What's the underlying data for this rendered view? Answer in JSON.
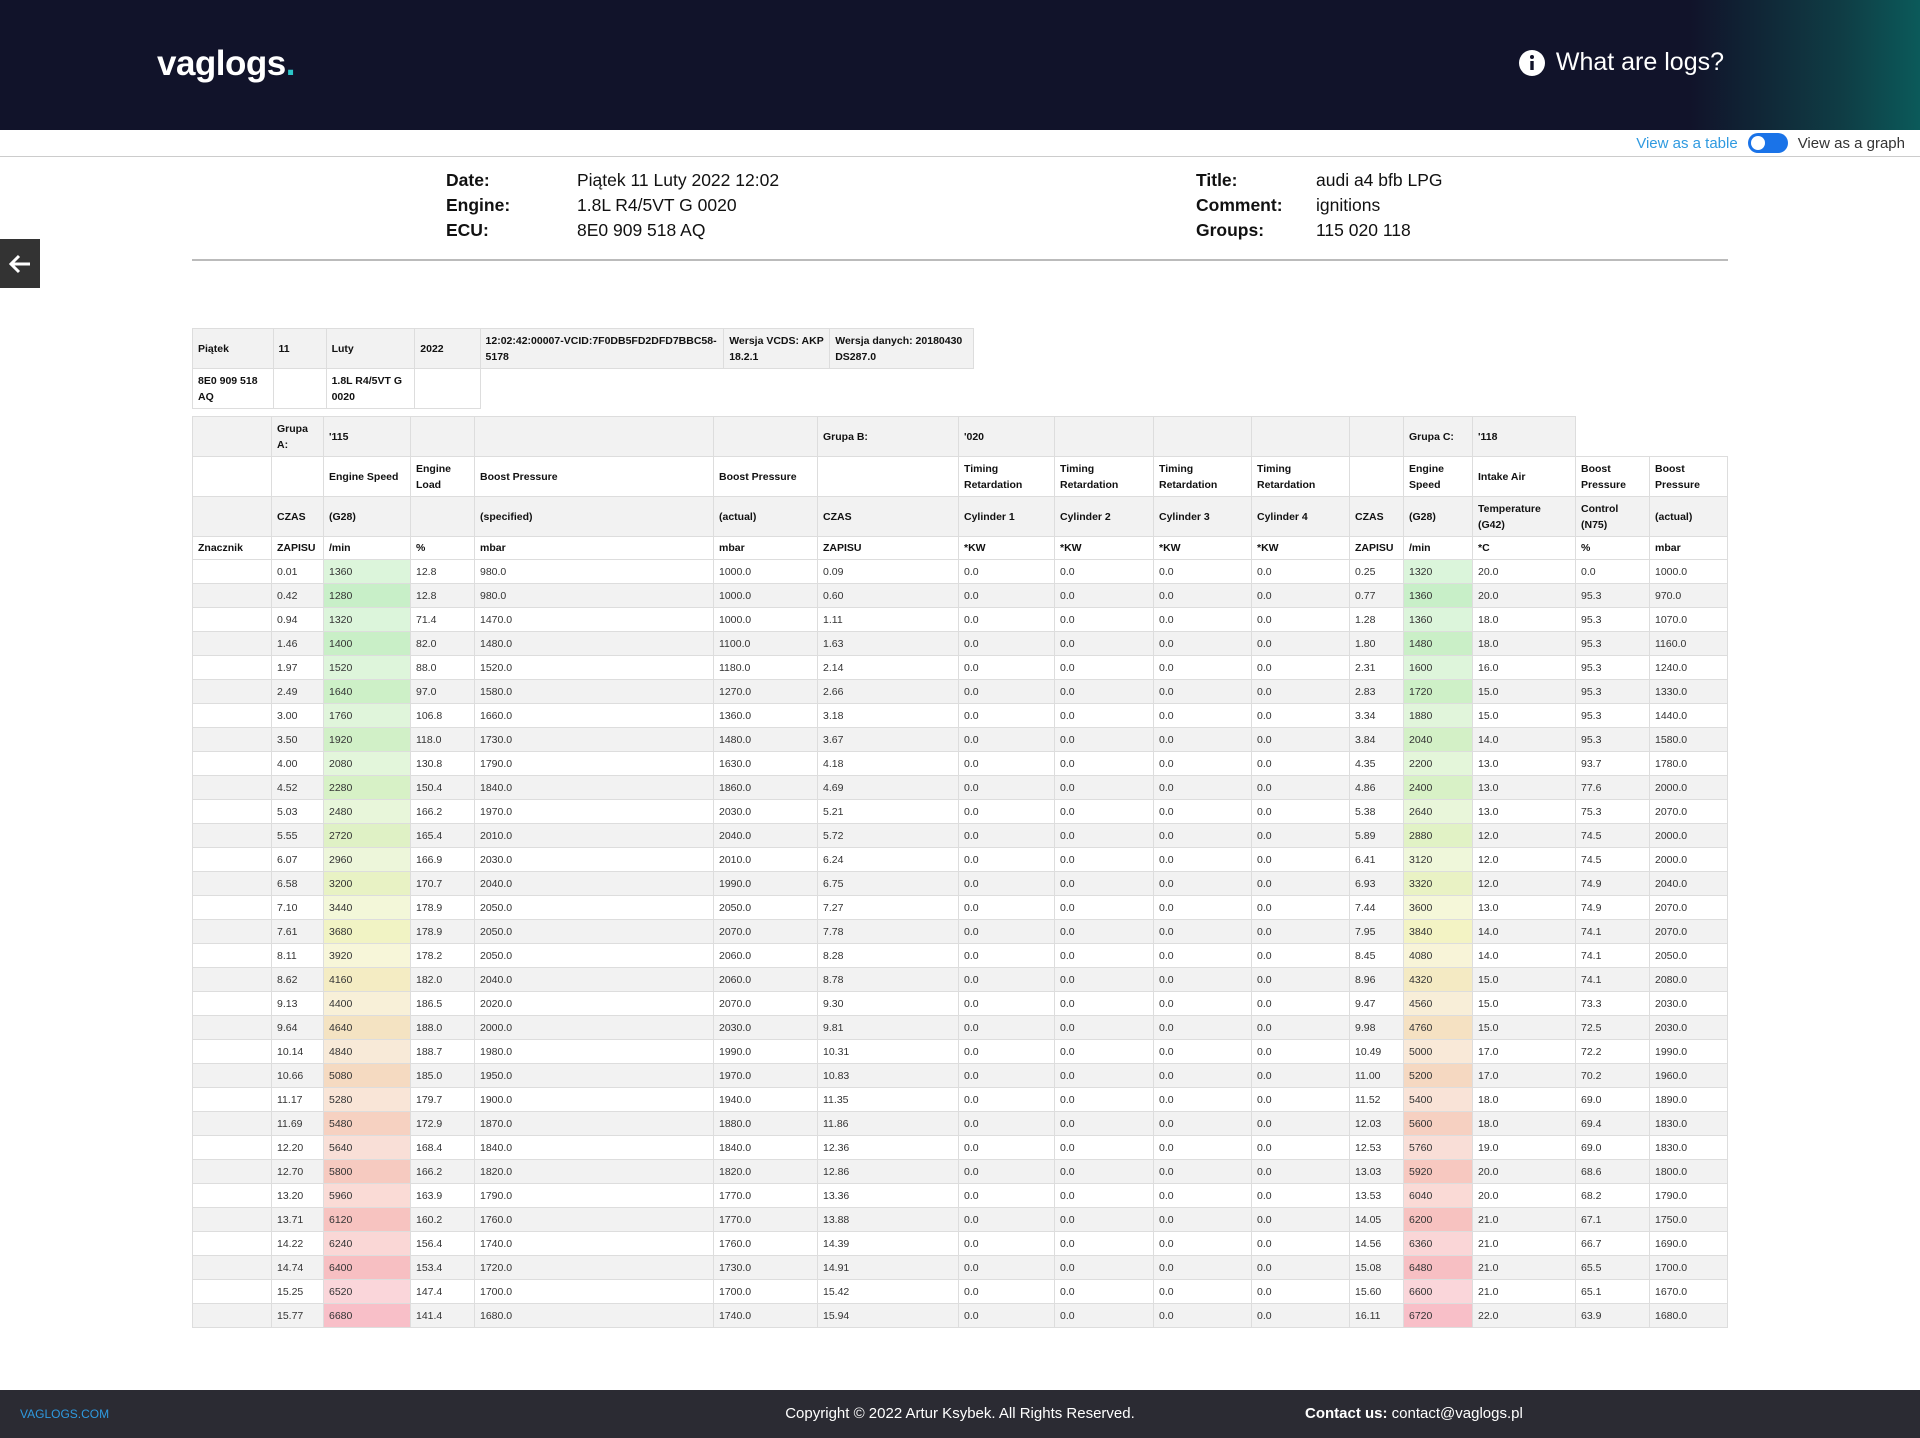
{
  "header": {
    "logo": "vaglogs",
    "logo_dot": ".",
    "help": "What are logs?"
  },
  "toggle": {
    "table": "View as a table",
    "graph": "View as a graph"
  },
  "info": {
    "left": [
      {
        "label": "Date:",
        "value": "Piątek 11 Luty 2022 12:02"
      },
      {
        "label": "Engine:",
        "value": "1.8L R4/5VT G 0020"
      },
      {
        "label": "ECU:",
        "value": "8E0 909 518 AQ"
      }
    ],
    "right": [
      {
        "label": "Title:",
        "value": "audi a4 bfb LPG"
      },
      {
        "label": "Comment:",
        "value": "ignitions"
      },
      {
        "label": "Groups:",
        "value": "115 020 118"
      }
    ]
  },
  "meta": [
    [
      "Piątek",
      "11",
      "Luty",
      "2022",
      "12:02:42:00007-VCID:7F0DB5FD2DFD7BBC58-5178",
      "Wersja VCDS: AKP 18.2.1",
      "Wersja danych: 20180430 DS287.0"
    ],
    [
      "8E0 909 518 AQ",
      null,
      "1.8L R4/5VT G 0020",
      null
    ]
  ],
  "table": {
    "head": [
      [
        null,
        "Grupa A:",
        "'115",
        null,
        null,
        null,
        "Grupa B:",
        "'020",
        null,
        null,
        null,
        null,
        "Grupa C:",
        "'118"
      ],
      [
        null,
        null,
        "Engine Speed",
        "Engine Load",
        "Boost Pressure",
        "Boost Pressure",
        null,
        "Timing Retardation",
        "Timing Retardation",
        "Timing Retardation",
        "Timing Retardation",
        null,
        "Engine Speed",
        "Intake Air",
        "Boost Pressure",
        "Boost Pressure"
      ],
      [
        null,
        "CZAS",
        "(G28)",
        null,
        "(specified)",
        "(actual)",
        "CZAS",
        "Cylinder 1",
        "Cylinder 2",
        "Cylinder 3",
        "Cylinder 4",
        "CZAS",
        "(G28)",
        "Temperature (G42)",
        "Control (N75)",
        "(actual)"
      ],
      [
        "Znacznik",
        "ZAPISU",
        "/min",
        "%",
        "mbar",
        "mbar",
        "ZAPISU",
        "*KW",
        "*KW",
        "*KW",
        "*KW",
        "ZAPISU",
        "/min",
        "*C",
        "%",
        "mbar"
      ]
    ],
    "rows": [
      [
        null,
        "0.01",
        "1360",
        "12.8",
        "980.0",
        "1000.0",
        "0.09",
        "0.0",
        "0.0",
        "0.0",
        "0.0",
        "0.25",
        "1320",
        "20.0",
        "0.0",
        "1000.0"
      ],
      [
        null,
        "0.42",
        "1280",
        "12.8",
        "980.0",
        "1000.0",
        "0.60",
        "0.0",
        "0.0",
        "0.0",
        "0.0",
        "0.77",
        "1360",
        "20.0",
        "95.3",
        "970.0"
      ],
      [
        null,
        "0.94",
        "1320",
        "71.4",
        "1470.0",
        "1000.0",
        "1.11",
        "0.0",
        "0.0",
        "0.0",
        "0.0",
        "1.28",
        "1360",
        "18.0",
        "95.3",
        "1070.0"
      ],
      [
        null,
        "1.46",
        "1400",
        "82.0",
        "1480.0",
        "1100.0",
        "1.63",
        "0.0",
        "0.0",
        "0.0",
        "0.0",
        "1.80",
        "1480",
        "18.0",
        "95.3",
        "1160.0"
      ],
      [
        null,
        "1.97",
        "1520",
        "88.0",
        "1520.0",
        "1180.0",
        "2.14",
        "0.0",
        "0.0",
        "0.0",
        "0.0",
        "2.31",
        "1600",
        "16.0",
        "95.3",
        "1240.0"
      ],
      [
        null,
        "2.49",
        "1640",
        "97.0",
        "1580.0",
        "1270.0",
        "2.66",
        "0.0",
        "0.0",
        "0.0",
        "0.0",
        "2.83",
        "1720",
        "15.0",
        "95.3",
        "1330.0"
      ],
      [
        null,
        "3.00",
        "1760",
        "106.8",
        "1660.0",
        "1360.0",
        "3.18",
        "0.0",
        "0.0",
        "0.0",
        "0.0",
        "3.34",
        "1880",
        "15.0",
        "95.3",
        "1440.0"
      ],
      [
        null,
        "3.50",
        "1920",
        "118.0",
        "1730.0",
        "1480.0",
        "3.67",
        "0.0",
        "0.0",
        "0.0",
        "0.0",
        "3.84",
        "2040",
        "14.0",
        "95.3",
        "1580.0"
      ],
      [
        null,
        "4.00",
        "2080",
        "130.8",
        "1790.0",
        "1630.0",
        "4.18",
        "0.0",
        "0.0",
        "0.0",
        "0.0",
        "4.35",
        "2200",
        "13.0",
        "93.7",
        "1780.0"
      ],
      [
        null,
        "4.52",
        "2280",
        "150.4",
        "1840.0",
        "1860.0",
        "4.69",
        "0.0",
        "0.0",
        "0.0",
        "0.0",
        "4.86",
        "2400",
        "13.0",
        "77.6",
        "2000.0"
      ],
      [
        null,
        "5.03",
        "2480",
        "166.2",
        "1970.0",
        "2030.0",
        "5.21",
        "0.0",
        "0.0",
        "0.0",
        "0.0",
        "5.38",
        "2640",
        "13.0",
        "75.3",
        "2070.0"
      ],
      [
        null,
        "5.55",
        "2720",
        "165.4",
        "2010.0",
        "2040.0",
        "5.72",
        "0.0",
        "0.0",
        "0.0",
        "0.0",
        "5.89",
        "2880",
        "12.0",
        "74.5",
        "2000.0"
      ],
      [
        null,
        "6.07",
        "2960",
        "166.9",
        "2030.0",
        "2010.0",
        "6.24",
        "0.0",
        "0.0",
        "0.0",
        "0.0",
        "6.41",
        "3120",
        "12.0",
        "74.5",
        "2000.0"
      ],
      [
        null,
        "6.58",
        "3200",
        "170.7",
        "2040.0",
        "1990.0",
        "6.75",
        "0.0",
        "0.0",
        "0.0",
        "0.0",
        "6.93",
        "3320",
        "12.0",
        "74.9",
        "2040.0"
      ],
      [
        null,
        "7.10",
        "3440",
        "178.9",
        "2050.0",
        "2050.0",
        "7.27",
        "0.0",
        "0.0",
        "0.0",
        "0.0",
        "7.44",
        "3600",
        "13.0",
        "74.9",
        "2070.0"
      ],
      [
        null,
        "7.61",
        "3680",
        "178.9",
        "2050.0",
        "2070.0",
        "7.78",
        "0.0",
        "0.0",
        "0.0",
        "0.0",
        "7.95",
        "3840",
        "14.0",
        "74.1",
        "2070.0"
      ],
      [
        null,
        "8.11",
        "3920",
        "178.2",
        "2050.0",
        "2060.0",
        "8.28",
        "0.0",
        "0.0",
        "0.0",
        "0.0",
        "8.45",
        "4080",
        "14.0",
        "74.1",
        "2050.0"
      ],
      [
        null,
        "8.62",
        "4160",
        "182.0",
        "2040.0",
        "2060.0",
        "8.78",
        "0.0",
        "0.0",
        "0.0",
        "0.0",
        "8.96",
        "4320",
        "15.0",
        "74.1",
        "2080.0"
      ],
      [
        null,
        "9.13",
        "4400",
        "186.5",
        "2020.0",
        "2070.0",
        "9.30",
        "0.0",
        "0.0",
        "0.0",
        "0.0",
        "9.47",
        "4560",
        "15.0",
        "73.3",
        "2030.0"
      ],
      [
        null,
        "9.64",
        "4640",
        "188.0",
        "2000.0",
        "2030.0",
        "9.81",
        "0.0",
        "0.0",
        "0.0",
        "0.0",
        "9.98",
        "4760",
        "15.0",
        "72.5",
        "2030.0"
      ],
      [
        null,
        "10.14",
        "4840",
        "188.7",
        "1980.0",
        "1990.0",
        "10.31",
        "0.0",
        "0.0",
        "0.0",
        "0.0",
        "10.49",
        "5000",
        "17.0",
        "72.2",
        "1990.0"
      ],
      [
        null,
        "10.66",
        "5080",
        "185.0",
        "1950.0",
        "1970.0",
        "10.83",
        "0.0",
        "0.0",
        "0.0",
        "0.0",
        "11.00",
        "5200",
        "17.0",
        "70.2",
        "1960.0"
      ],
      [
        null,
        "11.17",
        "5280",
        "179.7",
        "1900.0",
        "1940.0",
        "11.35",
        "0.0",
        "0.0",
        "0.0",
        "0.0",
        "11.52",
        "5400",
        "18.0",
        "69.0",
        "1890.0"
      ],
      [
        null,
        "11.69",
        "5480",
        "172.9",
        "1870.0",
        "1880.0",
        "11.86",
        "0.0",
        "0.0",
        "0.0",
        "0.0",
        "12.03",
        "5600",
        "18.0",
        "69.4",
        "1830.0"
      ],
      [
        null,
        "12.20",
        "5640",
        "168.4",
        "1840.0",
        "1840.0",
        "12.36",
        "0.0",
        "0.0",
        "0.0",
        "0.0",
        "12.53",
        "5760",
        "19.0",
        "69.0",
        "1830.0"
      ],
      [
        null,
        "12.70",
        "5800",
        "166.2",
        "1820.0",
        "1820.0",
        "12.86",
        "0.0",
        "0.0",
        "0.0",
        "0.0",
        "13.03",
        "5920",
        "20.0",
        "68.6",
        "1800.0"
      ],
      [
        null,
        "13.20",
        "5960",
        "163.9",
        "1790.0",
        "1770.0",
        "13.36",
        "0.0",
        "0.0",
        "0.0",
        "0.0",
        "13.53",
        "6040",
        "20.0",
        "68.2",
        "1790.0"
      ],
      [
        null,
        "13.71",
        "6120",
        "160.2",
        "1760.0",
        "1770.0",
        "13.88",
        "0.0",
        "0.0",
        "0.0",
        "0.0",
        "14.05",
        "6200",
        "21.0",
        "67.1",
        "1750.0"
      ],
      [
        null,
        "14.22",
        "6240",
        "156.4",
        "1740.0",
        "1760.0",
        "14.39",
        "0.0",
        "0.0",
        "0.0",
        "0.0",
        "14.56",
        "6360",
        "21.0",
        "66.7",
        "1690.0"
      ],
      [
        null,
        "14.74",
        "6400",
        "153.4",
        "1720.0",
        "1730.0",
        "14.91",
        "0.0",
        "0.0",
        "0.0",
        "0.0",
        "15.08",
        "6480",
        "21.0",
        "65.5",
        "1700.0"
      ],
      [
        null,
        "15.25",
        "6520",
        "147.4",
        "1700.0",
        "1700.0",
        "15.42",
        "0.0",
        "0.0",
        "0.0",
        "0.0",
        "15.60",
        "6600",
        "21.0",
        "65.1",
        "1670.0"
      ],
      [
        null,
        "15.77",
        "6680",
        "141.4",
        "1680.0",
        "1740.0",
        "15.94",
        "0.0",
        "0.0",
        "0.0",
        "0.0",
        "16.11",
        "6720",
        "22.0",
        "63.9",
        "1680.0"
      ]
    ]
  },
  "footer": {
    "site": "VAGLOGS.COM",
    "copyright": "Copyright © 2022 Artur Ksybek. All Rights Reserved.",
    "contact_label": "Contact us:",
    "contact": "contact@vaglogs.pl"
  }
}
